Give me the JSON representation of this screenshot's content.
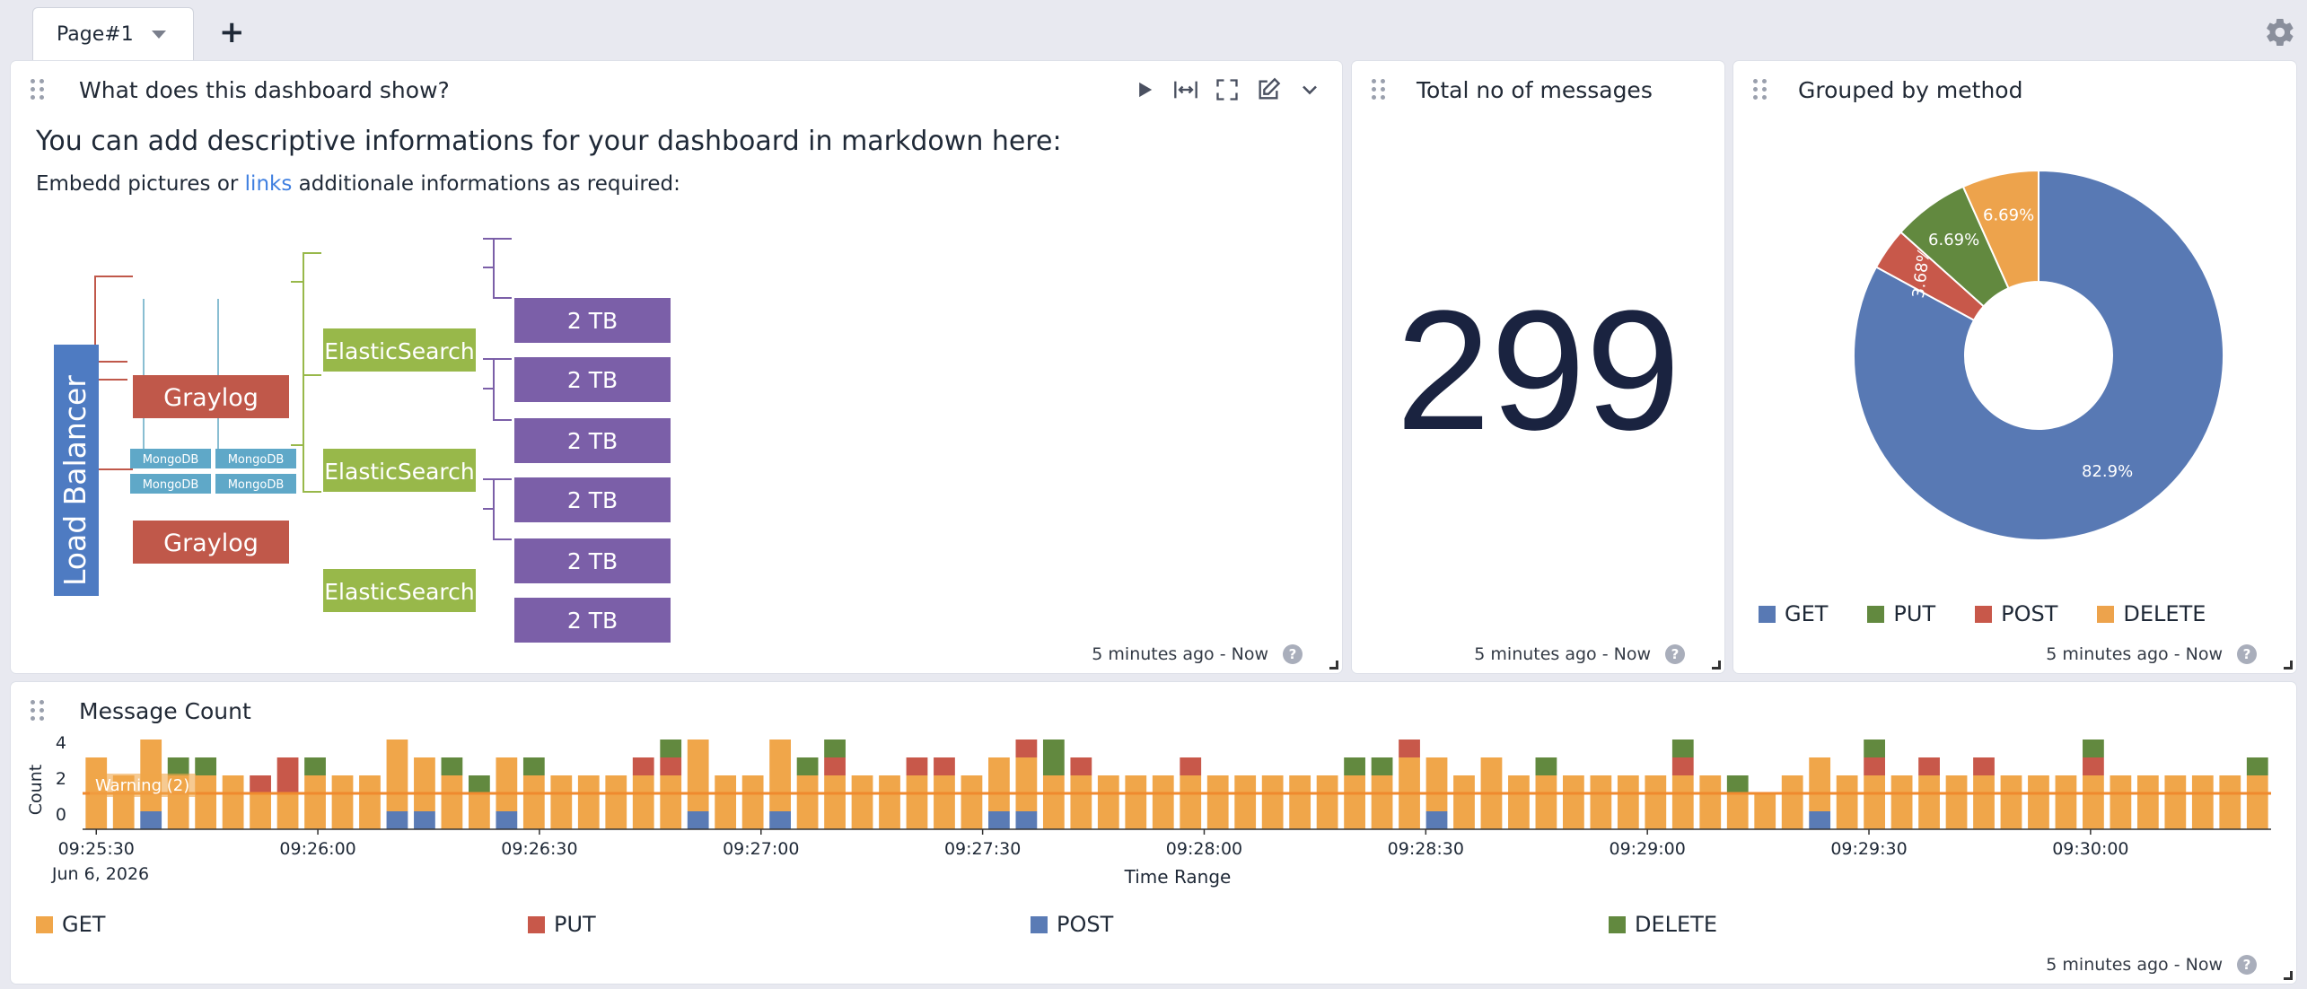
{
  "tabs": {
    "active_label": "Page#1",
    "add_label": "+"
  },
  "colors": {
    "get": "#f0a64a",
    "put": "#c8584a",
    "post": "#5a7bb5",
    "delete": "#62893f",
    "pie_get": "#5879b4",
    "pie_put": "#62893f",
    "pie_post": "#c8584a",
    "pie_delete": "#eda34c"
  },
  "icons": {
    "settings": "gear-icon",
    "drag": "drag-handle-icon",
    "play": "play-icon",
    "expand_width": "expand-width-icon",
    "fullscreen": "fullscreen-icon",
    "edit": "edit-icon",
    "menu": "chevron-down-icon",
    "help": "help-icon"
  },
  "widgets": {
    "description": {
      "title": "What does this dashboard show?",
      "heading": "You can add descriptive informations for your dashboard in markdown here:",
      "para_pre": "Embedd pictures or ",
      "para_link": "links",
      "para_post": " additionale informations as required:",
      "footer": "5 minutes ago - Now",
      "diagram": {
        "load_balancer": "Load Balancer",
        "graylog_top": "Graylog",
        "graylog_bottom": "Graylog",
        "mongodb": [
          "MongoDB",
          "MongoDB",
          "MongoDB",
          "MongoDB"
        ],
        "elasticsearch": [
          "ElasticSearch",
          "ElasticSearch",
          "ElasticSearch"
        ],
        "storage": [
          "2 TB",
          "2 TB",
          "2 TB",
          "2 TB",
          "2 TB",
          "2 TB"
        ]
      }
    },
    "total": {
      "title": "Total no of messages",
      "value": "299",
      "footer": "5 minutes ago - Now"
    },
    "grouped": {
      "title": "Grouped by method",
      "footer": "5 minutes ago - Now",
      "legend": [
        "GET",
        "PUT",
        "POST",
        "DELETE"
      ]
    },
    "message_count": {
      "title": "Message Count",
      "footer": "5 minutes ago - Now",
      "legend": [
        "GET",
        "PUT",
        "POST",
        "DELETE"
      ]
    }
  },
  "chart_data": [
    {
      "type": "pie",
      "labels": [
        "GET",
        "POST",
        "PUT",
        "DELETE"
      ],
      "values": [
        82.9,
        3.68,
        6.69,
        6.69
      ],
      "label_text": [
        "82.9%",
        "3.68%",
        "6.69%",
        "6.69%"
      ],
      "legend_position": "bottom"
    },
    {
      "type": "bar",
      "stacked": true,
      "xlabel": "Time Range",
      "ylabel": "Count",
      "ylim": [
        0,
        4
      ],
      "yticks": [
        "0",
        "2",
        "4"
      ],
      "x_ticks": [
        "09:25:30",
        "09:26:00",
        "09:26:30",
        "09:27:00",
        "09:27:30",
        "09:28:00",
        "09:28:30",
        "09:29:00",
        "09:29:30",
        "09:30:00"
      ],
      "x_date": "Jun 6, 2026",
      "threshold": {
        "label": "Warning (2)",
        "value": 2
      },
      "series": [
        {
          "name": "GET",
          "values": [
            4,
            3,
            4,
            3,
            3,
            3,
            2,
            2,
            3,
            3,
            3,
            4,
            3,
            3,
            2,
            3,
            3,
            3,
            3,
            3,
            3,
            3,
            4,
            3,
            3,
            4,
            3,
            3,
            3,
            3,
            3,
            3,
            3,
            3,
            3,
            3,
            3,
            3,
            3,
            3,
            3,
            3,
            3,
            3,
            3,
            3,
            3,
            3,
            4,
            3,
            3,
            4,
            3,
            3,
            3,
            3,
            3,
            3,
            3,
            3,
            2,
            2,
            3,
            3,
            3,
            3,
            3,
            3,
            3,
            3,
            3,
            3,
            3,
            3,
            3,
            3,
            3,
            3,
            3,
            3
          ]
        },
        {
          "name": "PUT",
          "values": [
            0,
            0,
            0,
            0,
            0,
            0,
            1,
            2,
            0,
            0,
            0,
            0,
            0,
            0,
            0,
            0,
            0,
            0,
            0,
            0,
            1,
            1,
            0,
            0,
            0,
            0,
            0,
            1,
            0,
            0,
            1,
            1,
            0,
            0,
            1,
            0,
            1,
            0,
            0,
            0,
            1,
            0,
            0,
            0,
            0,
            0,
            0,
            0,
            1,
            0,
            0,
            0,
            0,
            0,
            0,
            0,
            0,
            0,
            1,
            0,
            0,
            0,
            0,
            0,
            0,
            1,
            0,
            1,
            0,
            1,
            0,
            0,
            0,
            1,
            0,
            0,
            0,
            0,
            0,
            0
          ]
        },
        {
          "name": "POST",
          "values": [
            0,
            0,
            1,
            0,
            0,
            0,
            0,
            0,
            0,
            0,
            0,
            1,
            1,
            0,
            0,
            1,
            0,
            0,
            0,
            0,
            0,
            0,
            1,
            0,
            0,
            1,
            0,
            0,
            0,
            0,
            0,
            0,
            0,
            1,
            1,
            0,
            0,
            0,
            0,
            0,
            0,
            0,
            0,
            0,
            0,
            0,
            0,
            0,
            0,
            1,
            0,
            0,
            0,
            0,
            0,
            0,
            0,
            0,
            0,
            0,
            0,
            0,
            0,
            1,
            0,
            0,
            0,
            0,
            0,
            0,
            0,
            0,
            0,
            0,
            0,
            0,
            0,
            0,
            0,
            0
          ]
        },
        {
          "name": "DELETE",
          "values": [
            0,
            0,
            0,
            1,
            1,
            0,
            0,
            0,
            1,
            0,
            0,
            0,
            0,
            1,
            1,
            0,
            1,
            0,
            0,
            0,
            0,
            1,
            0,
            0,
            0,
            0,
            1,
            1,
            0,
            0,
            0,
            0,
            0,
            0,
            0,
            2,
            0,
            0,
            0,
            0,
            0,
            0,
            0,
            0,
            0,
            0,
            1,
            1,
            0,
            0,
            0,
            0,
            0,
            1,
            0,
            0,
            0,
            0,
            1,
            0,
            1,
            0,
            0,
            0,
            0,
            1,
            0,
            0,
            0,
            0,
            0,
            0,
            0,
            1,
            0,
            0,
            0,
            0,
            0,
            1
          ]
        }
      ],
      "legend_position": "bottom"
    }
  ]
}
